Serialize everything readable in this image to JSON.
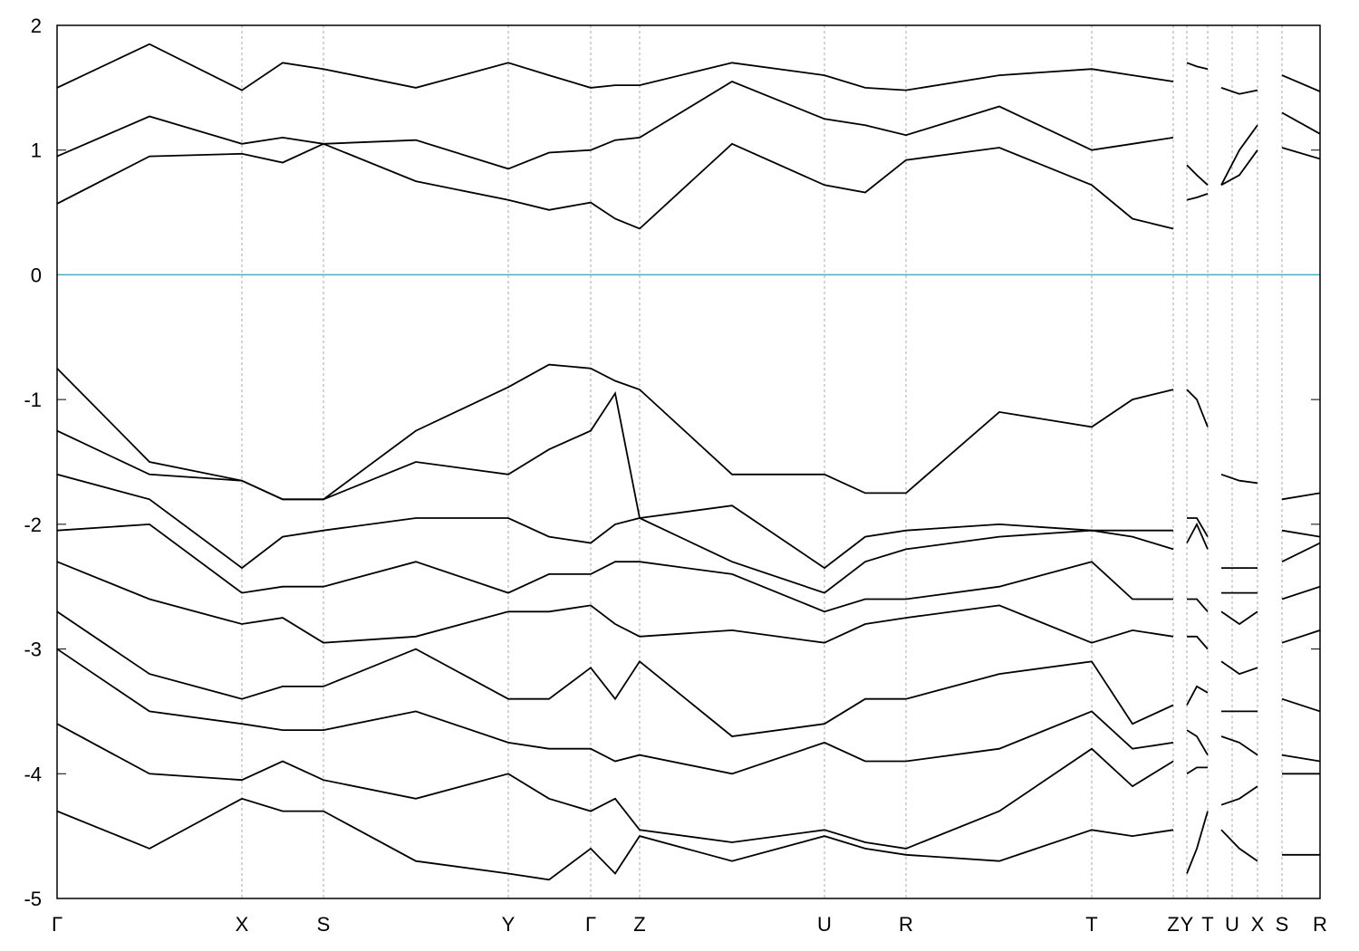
{
  "chart_data": {
    "type": "line",
    "x": [
      0,
      1.02,
      2.04,
      2.49,
      2.94,
      3.96,
      4.98,
      5.43,
      5.89,
      6.16,
      6.43,
      7.45,
      8.47,
      8.92,
      9.37,
      10.4,
      11.42,
      11.87,
      12.32,
      12.4,
      12.47,
      12.58,
      12.7,
      12.78,
      12.85,
      13.05,
      13.25,
      13.4,
      13.52,
      13.94
    ],
    "series": [
      {
        "values": [
          0.57,
          0.95,
          0.97,
          0.9,
          1.05,
          0.75,
          0.6,
          0.52,
          0.58,
          0.45,
          0.37,
          1.05,
          0.72,
          0.66,
          0.92,
          1.02,
          0.72,
          0.45,
          0.37,
          null,
          0.6,
          0.62,
          0.65,
          null,
          0.72,
          0.8,
          1.0,
          null,
          1.02,
          0.93
        ]
      },
      {
        "values": [
          0.95,
          1.27,
          1.05,
          1.1,
          1.05,
          1.08,
          0.85,
          0.98,
          1.0,
          1.08,
          1.1,
          1.55,
          1.25,
          1.2,
          1.12,
          1.35,
          1.0,
          1.05,
          1.1,
          null,
          0.88,
          0.8,
          0.72,
          null,
          0.72,
          1.0,
          1.2,
          null,
          1.3,
          1.13
        ]
      },
      {
        "values": [
          1.5,
          1.85,
          1.48,
          1.7,
          1.65,
          1.5,
          1.7,
          1.6,
          1.5,
          1.52,
          1.52,
          1.7,
          1.6,
          1.5,
          1.48,
          1.6,
          1.65,
          1.6,
          1.55,
          null,
          1.7,
          1.67,
          1.65,
          null,
          1.5,
          1.45,
          1.48,
          null,
          1.6,
          1.47
        ]
      },
      {
        "values": [
          -0.75,
          -1.5,
          -1.65,
          -1.8,
          -1.8,
          -1.25,
          -0.9,
          -0.72,
          -0.75,
          -0.85,
          -0.92,
          -1.6,
          -1.6,
          -1.75,
          -1.75,
          -1.1,
          -1.22,
          -1.0,
          -0.92,
          null,
          -0.92,
          -1.0,
          -1.22,
          null,
          -1.6,
          -1.65,
          -1.67,
          null,
          -1.8,
          -1.75
        ]
      },
      {
        "values": [
          -1.25,
          -1.6,
          -1.65,
          -1.8,
          -1.8,
          -1.5,
          -1.6,
          -1.4,
          -1.25,
          -0.95,
          -1.95,
          -1.85,
          -2.35,
          -2.1,
          -2.05,
          -2.0,
          -2.05,
          -2.05,
          -2.05,
          null,
          -1.95,
          -1.95,
          -2.1,
          null,
          -2.35,
          -2.35,
          -2.35,
          null,
          -2.05,
          -2.1
        ]
      },
      {
        "values": [
          -1.6,
          -1.8,
          -2.35,
          -2.1,
          -2.05,
          -1.95,
          -1.95,
          -2.1,
          -2.15,
          -2.0,
          -1.95,
          -2.3,
          -2.55,
          -2.3,
          -2.2,
          -2.1,
          -2.05,
          -2.1,
          -2.2,
          null,
          -2.15,
          -2.0,
          -2.2,
          null,
          -2.55,
          -2.55,
          -2.55,
          null,
          -2.3,
          -2.15
        ]
      },
      {
        "values": [
          -2.05,
          -2.0,
          -2.55,
          -2.5,
          -2.5,
          -2.3,
          -2.55,
          -2.4,
          -2.4,
          -2.3,
          -2.3,
          -2.4,
          -2.7,
          -2.6,
          -2.6,
          -2.5,
          -2.3,
          -2.6,
          -2.6,
          null,
          -2.6,
          -2.6,
          -2.7,
          null,
          -2.7,
          -2.8,
          -2.7,
          null,
          -2.6,
          -2.5
        ]
      },
      {
        "values": [
          -2.3,
          -2.6,
          -2.8,
          -2.75,
          -2.95,
          -2.9,
          -2.7,
          -2.7,
          -2.65,
          -2.8,
          -2.9,
          -2.85,
          -2.95,
          -2.8,
          -2.75,
          -2.65,
          -2.95,
          -2.85,
          -2.9,
          null,
          -2.9,
          -2.9,
          -3.0,
          null,
          -3.1,
          -3.2,
          -3.15,
          null,
          -2.95,
          -2.85
        ]
      },
      {
        "values": [
          -2.7,
          -3.2,
          -3.4,
          -3.3,
          -3.3,
          -3.0,
          -3.4,
          -3.4,
          -3.15,
          -3.4,
          -3.1,
          -3.7,
          -3.6,
          -3.4,
          -3.4,
          -3.2,
          -3.1,
          -3.6,
          -3.45,
          null,
          -3.45,
          -3.3,
          -3.35,
          null,
          -3.5,
          -3.5,
          -3.5,
          null,
          -3.4,
          -3.5
        ]
      },
      {
        "values": [
          -3.0,
          -3.5,
          -3.6,
          -3.65,
          -3.65,
          -3.5,
          -3.75,
          -3.8,
          -3.8,
          -3.9,
          -3.85,
          -4.0,
          -3.75,
          -3.9,
          -3.9,
          -3.8,
          -3.5,
          -3.8,
          -3.75,
          null,
          -3.65,
          -3.7,
          -3.85,
          null,
          -3.7,
          -3.75,
          -3.85,
          null,
          -3.85,
          -3.9
        ]
      },
      {
        "values": [
          -3.6,
          -4.0,
          -4.05,
          -3.9,
          -4.05,
          -4.2,
          -4.0,
          -4.2,
          -4.3,
          -4.2,
          -4.45,
          -4.55,
          -4.45,
          -4.55,
          -4.6,
          -4.3,
          -3.8,
          -4.1,
          -3.9,
          null,
          -4.0,
          -3.95,
          -3.95,
          null,
          -4.25,
          -4.2,
          -4.1,
          null,
          -4.0,
          -4.0
        ]
      },
      {
        "values": [
          -4.3,
          -4.6,
          -4.2,
          -4.3,
          -4.3,
          -4.7,
          -4.8,
          -4.85,
          -4.6,
          -4.8,
          -4.5,
          -4.7,
          -4.5,
          -4.6,
          -4.65,
          -4.7,
          -4.45,
          -4.5,
          -4.45,
          null,
          -4.8,
          -4.6,
          -4.3,
          null,
          -4.45,
          -4.6,
          -4.7,
          null,
          -4.65,
          -4.65
        ]
      }
    ],
    "line_color": "#000000",
    "xlim": [
      0,
      13.94
    ],
    "xticks": [
      {
        "value": 0,
        "label": "Γ"
      },
      {
        "value": 2.04,
        "label": "X"
      },
      {
        "value": 2.94,
        "label": "S"
      },
      {
        "value": 4.98,
        "label": "Y"
      },
      {
        "value": 5.89,
        "label": "Γ"
      },
      {
        "value": 6.43,
        "label": "Z"
      },
      {
        "value": 8.47,
        "label": "U"
      },
      {
        "value": 9.37,
        "label": "R"
      },
      {
        "value": 11.42,
        "label": "T"
      },
      {
        "value": 12.32,
        "label": "Z"
      },
      {
        "value": 12.47,
        "label": "Y"
      },
      {
        "value": 12.7,
        "label": "T"
      },
      {
        "value": 12.97,
        "label": "U"
      },
      {
        "value": 13.25,
        "label": "X"
      },
      {
        "value": 13.52,
        "label": "S"
      },
      {
        "value": 13.94,
        "label": "R"
      }
    ],
    "ylim": [
      -5,
      2
    ],
    "yticks": [
      -5,
      -4,
      -3,
      -2,
      -1,
      0,
      1,
      2
    ],
    "fermi_level": 0,
    "fermi_color": "#4aaec4",
    "grid": true
  }
}
